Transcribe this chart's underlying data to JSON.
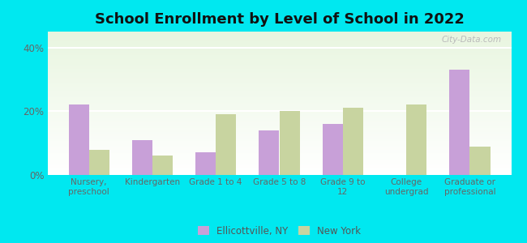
{
  "title": "School Enrollment by Level of School in 2022",
  "categories": [
    "Nursery,\npreschool",
    "Kindergarten",
    "Grade 1 to 4",
    "Grade 5 to 8",
    "Grade 9 to\n12",
    "College\nundergrad",
    "Graduate or\nprofessional"
  ],
  "ellicottville": [
    22,
    11,
    7,
    14,
    16,
    0,
    33
  ],
  "new_york": [
    8,
    6,
    19,
    20,
    21,
    22,
    9
  ],
  "ellicottville_color": "#c8a0d8",
  "new_york_color": "#c8d4a0",
  "background_outer": "#00e8f0",
  "ylabel_ticks": [
    "0%",
    "20%",
    "40%"
  ],
  "yticks": [
    0,
    20,
    40
  ],
  "ylim": [
    0,
    45
  ],
  "title_fontsize": 13,
  "bar_width": 0.32,
  "legend_ellicottville": "Ellicottville, NY",
  "legend_newyork": "New York",
  "watermark": "City-Data.com"
}
